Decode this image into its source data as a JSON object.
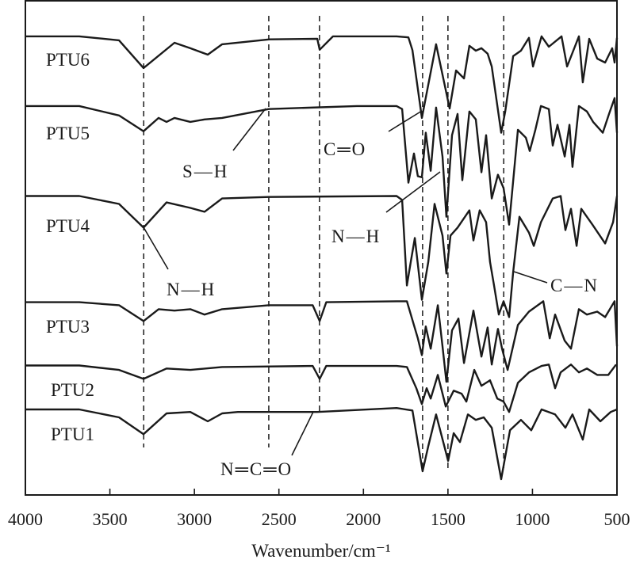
{
  "chart_data": {
    "type": "line",
    "title": "",
    "xlabel": "Wavenumber/cm⁻¹",
    "ylabel": "",
    "xlim": [
      4000,
      500
    ],
    "x_reversed": true,
    "ylim": [
      0,
      100
    ],
    "y_axis_shown": false,
    "grid": false,
    "legend": "none (series labelled inline at left)",
    "x_ticks": [
      4000,
      3500,
      3000,
      2500,
      2000,
      1500,
      1000,
      500
    ],
    "x_tick_labels": [
      "4000",
      "3500",
      "3000",
      "2500",
      "2000",
      "1500",
      "1000",
      "500"
    ],
    "reference_lines_wavenumber": [
      3300,
      2560,
      2260,
      1650,
      1500,
      1170
    ],
    "line_color": "#1a1a1a",
    "series": [
      {
        "name": "PTU6",
        "points": [
          [
            4000,
            92.8
          ],
          [
            3681,
            92.8
          ],
          [
            3446,
            92.0
          ],
          [
            3301,
            86.4
          ],
          [
            3118,
            91.5
          ],
          [
            3024,
            90.4
          ],
          [
            2921,
            89.1
          ],
          [
            2836,
            91.2
          ],
          [
            2555,
            92.2
          ],
          [
            2273,
            92.3
          ],
          [
            2259,
            90.1
          ],
          [
            2180,
            92.8
          ],
          [
            1804,
            92.8
          ],
          [
            1734,
            92.6
          ],
          [
            1710,
            90.0
          ],
          [
            1654,
            76.3
          ],
          [
            1570,
            91.2
          ],
          [
            1490,
            78.2
          ],
          [
            1452,
            85.9
          ],
          [
            1405,
            84.3
          ],
          [
            1373,
            90.9
          ],
          [
            1335,
            89.9
          ],
          [
            1302,
            90.4
          ],
          [
            1265,
            89.3
          ],
          [
            1241,
            86.7
          ],
          [
            1185,
            73.3
          ],
          [
            1161,
            77.6
          ],
          [
            1114,
            88.8
          ],
          [
            1068,
            89.9
          ],
          [
            1021,
            92.5
          ],
          [
            997,
            86.7
          ],
          [
            946,
            92.8
          ],
          [
            903,
            90.7
          ],
          [
            828,
            92.8
          ],
          [
            795,
            86.7
          ],
          [
            725,
            92.8
          ],
          [
            702,
            83.5
          ],
          [
            664,
            92.3
          ],
          [
            617,
            88.3
          ],
          [
            570,
            87.5
          ],
          [
            528,
            90.4
          ],
          [
            514,
            87.5
          ],
          [
            500,
            92.5
          ]
        ]
      },
      {
        "name": "PTU5",
        "points": [
          [
            4000,
            78.7
          ],
          [
            3681,
            78.7
          ],
          [
            3446,
            76.8
          ],
          [
            3301,
            73.6
          ],
          [
            3212,
            76.3
          ],
          [
            3165,
            75.5
          ],
          [
            3118,
            76.3
          ],
          [
            3024,
            75.5
          ],
          [
            2940,
            76.0
          ],
          [
            2836,
            76.3
          ],
          [
            2560,
            78.1
          ],
          [
            2039,
            78.7
          ],
          [
            1804,
            78.7
          ],
          [
            1771,
            78.1
          ],
          [
            1734,
            63.2
          ],
          [
            1701,
            69.1
          ],
          [
            1678,
            64.5
          ],
          [
            1654,
            64.3
          ],
          [
            1631,
            73.3
          ],
          [
            1602,
            65.6
          ],
          [
            1570,
            78.4
          ],
          [
            1532,
            68.5
          ],
          [
            1509,
            56.3
          ],
          [
            1476,
            72.8
          ],
          [
            1443,
            77.1
          ],
          [
            1415,
            63.7
          ],
          [
            1373,
            77.6
          ],
          [
            1335,
            76.0
          ],
          [
            1302,
            65.3
          ],
          [
            1274,
            72.8
          ],
          [
            1241,
            60.0
          ],
          [
            1204,
            64.8
          ],
          [
            1171,
            62.1
          ],
          [
            1138,
            54.7
          ],
          [
            1086,
            73.9
          ],
          [
            1039,
            72.3
          ],
          [
            1016,
            69.6
          ],
          [
            983,
            73.9
          ],
          [
            950,
            78.7
          ],
          [
            903,
            78.1
          ],
          [
            880,
            70.7
          ],
          [
            852,
            74.9
          ],
          [
            809,
            68.5
          ],
          [
            781,
            74.9
          ],
          [
            763,
            66.4
          ],
          [
            725,
            78.7
          ],
          [
            678,
            77.6
          ],
          [
            641,
            75.5
          ],
          [
            584,
            73.3
          ],
          [
            547,
            77.1
          ],
          [
            514,
            80.3
          ],
          [
            500,
            73.3
          ]
        ]
      },
      {
        "name": "PTU4",
        "points": [
          [
            4000,
            60.5
          ],
          [
            3681,
            60.5
          ],
          [
            3446,
            58.9
          ],
          [
            3301,
            54.1
          ],
          [
            3165,
            59.2
          ],
          [
            3024,
            58.1
          ],
          [
            2940,
            57.3
          ],
          [
            2836,
            60.0
          ],
          [
            2560,
            60.3
          ],
          [
            1804,
            60.5
          ],
          [
            1771,
            59.7
          ],
          [
            1743,
            42.4
          ],
          [
            1720,
            47.2
          ],
          [
            1696,
            52.0
          ],
          [
            1654,
            39.5
          ],
          [
            1616,
            47.2
          ],
          [
            1579,
            58.9
          ],
          [
            1532,
            52.5
          ],
          [
            1509,
            44.8
          ],
          [
            1485,
            52.5
          ],
          [
            1443,
            54.1
          ],
          [
            1373,
            57.6
          ],
          [
            1349,
            51.5
          ],
          [
            1312,
            57.6
          ],
          [
            1274,
            55.2
          ],
          [
            1251,
            47.2
          ],
          [
            1227,
            42.4
          ],
          [
            1199,
            36.5
          ],
          [
            1171,
            39.2
          ],
          [
            1138,
            36.0
          ],
          [
            1114,
            45.1
          ],
          [
            1077,
            56.3
          ],
          [
            1021,
            53.1
          ],
          [
            992,
            50.4
          ],
          [
            950,
            55.2
          ],
          [
            880,
            60.0
          ],
          [
            833,
            60.5
          ],
          [
            805,
            53.6
          ],
          [
            772,
            57.9
          ],
          [
            739,
            50.4
          ],
          [
            711,
            57.9
          ],
          [
            645,
            54.7
          ],
          [
            570,
            50.9
          ],
          [
            523,
            55.2
          ],
          [
            500,
            60.5
          ]
        ]
      },
      {
        "name": "PTU3",
        "points": [
          [
            4000,
            39.0
          ],
          [
            3681,
            39.0
          ],
          [
            3446,
            38.4
          ],
          [
            3301,
            35.2
          ],
          [
            3212,
            37.6
          ],
          [
            3118,
            37.3
          ],
          [
            3024,
            37.6
          ],
          [
            2940,
            36.5
          ],
          [
            2836,
            37.6
          ],
          [
            2560,
            38.4
          ],
          [
            2300,
            38.4
          ],
          [
            2259,
            35.2
          ],
          [
            2220,
            39.0
          ],
          [
            1804,
            39.2
          ],
          [
            1743,
            39.2
          ],
          [
            1678,
            31.7
          ],
          [
            1654,
            28.3
          ],
          [
            1631,
            34.1
          ],
          [
            1602,
            29.6
          ],
          [
            1560,
            38.4
          ],
          [
            1532,
            30.1
          ],
          [
            1509,
            22.9
          ],
          [
            1476,
            33.3
          ],
          [
            1438,
            35.7
          ],
          [
            1405,
            26.7
          ],
          [
            1349,
            37.3
          ],
          [
            1302,
            28.0
          ],
          [
            1265,
            33.9
          ],
          [
            1241,
            26.4
          ],
          [
            1204,
            33.6
          ],
          [
            1180,
            29.6
          ],
          [
            1147,
            25.3
          ],
          [
            1086,
            34.4
          ],
          [
            1021,
            37.1
          ],
          [
            936,
            39.2
          ],
          [
            898,
            31.7
          ],
          [
            866,
            36.5
          ],
          [
            809,
            31.2
          ],
          [
            772,
            29.6
          ],
          [
            725,
            37.6
          ],
          [
            678,
            36.5
          ],
          [
            617,
            37.1
          ],
          [
            570,
            36.0
          ],
          [
            514,
            39.2
          ],
          [
            500,
            30.1
          ]
        ]
      },
      {
        "name": "PTU2",
        "points": [
          [
            4000,
            26.2
          ],
          [
            3681,
            26.2
          ],
          [
            3446,
            25.3
          ],
          [
            3301,
            23.5
          ],
          [
            3165,
            25.6
          ],
          [
            3024,
            25.3
          ],
          [
            2836,
            25.9
          ],
          [
            2300,
            26.1
          ],
          [
            2259,
            23.5
          ],
          [
            2220,
            26.1
          ],
          [
            1804,
            26.1
          ],
          [
            1743,
            25.9
          ],
          [
            1687,
            21.6
          ],
          [
            1654,
            18.4
          ],
          [
            1626,
            21.6
          ],
          [
            1602,
            19.5
          ],
          [
            1560,
            24.3
          ],
          [
            1513,
            17.9
          ],
          [
            1466,
            21.1
          ],
          [
            1419,
            20.5
          ],
          [
            1391,
            18.9
          ],
          [
            1344,
            25.3
          ],
          [
            1302,
            22.1
          ],
          [
            1251,
            23.2
          ],
          [
            1208,
            19.5
          ],
          [
            1171,
            18.9
          ],
          [
            1138,
            16.8
          ],
          [
            1086,
            22.7
          ],
          [
            1021,
            24.8
          ],
          [
            946,
            26.1
          ],
          [
            903,
            26.4
          ],
          [
            866,
            21.6
          ],
          [
            833,
            24.8
          ],
          [
            772,
            26.4
          ],
          [
            725,
            24.8
          ],
          [
            678,
            25.6
          ],
          [
            617,
            24.3
          ],
          [
            551,
            24.3
          ],
          [
            505,
            26.4
          ]
        ]
      },
      {
        "name": "PTU1",
        "points": [
          [
            4000,
            17.3
          ],
          [
            3681,
            17.3
          ],
          [
            3446,
            15.7
          ],
          [
            3301,
            12.3
          ],
          [
            3165,
            16.5
          ],
          [
            3024,
            16.8
          ],
          [
            2921,
            14.9
          ],
          [
            2836,
            16.5
          ],
          [
            2743,
            16.8
          ],
          [
            2273,
            16.8
          ],
          [
            1804,
            17.6
          ],
          [
            1710,
            17.1
          ],
          [
            1650,
            4.8
          ],
          [
            1616,
            9.9
          ],
          [
            1570,
            16.3
          ],
          [
            1499,
            6.9
          ],
          [
            1466,
            12.5
          ],
          [
            1429,
            10.7
          ],
          [
            1382,
            16.3
          ],
          [
            1335,
            15.2
          ],
          [
            1288,
            15.7
          ],
          [
            1241,
            13.6
          ],
          [
            1185,
            3.2
          ],
          [
            1133,
            13.1
          ],
          [
            1068,
            15.2
          ],
          [
            1007,
            13.1
          ],
          [
            946,
            17.3
          ],
          [
            866,
            16.3
          ],
          [
            805,
            13.6
          ],
          [
            763,
            16.3
          ],
          [
            702,
            11.2
          ],
          [
            664,
            17.3
          ],
          [
            598,
            14.9
          ],
          [
            537,
            16.8
          ],
          [
            500,
            17.3
          ]
        ]
      }
    ],
    "annotations": [
      {
        "text": "S—H",
        "wavenumber": 2560
      },
      {
        "text": "C═O",
        "wavenumber": 1650
      },
      {
        "text": "N—H",
        "wavenumber": 1500
      },
      {
        "text": "N—H",
        "wavenumber": 3300
      },
      {
        "text": "C—N",
        "wavenumber": 1170
      },
      {
        "text": "N═C═O",
        "wavenumber": 2260
      }
    ]
  }
}
